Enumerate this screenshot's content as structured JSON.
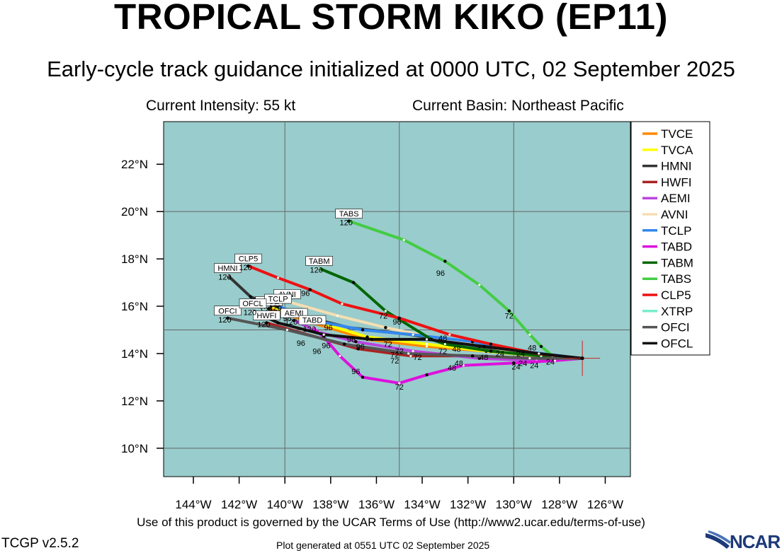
{
  "header": {
    "title": "TROPICAL STORM KIKO (EP11)",
    "subtitle": "Early-cycle track guidance initialized at 0000 UTC, 02 September 2025",
    "intensity": "Current Intensity: 55 kt",
    "basin": "Current Basin: Northeast Pacific"
  },
  "footer": {
    "terms": "Use of this product is governed by the UCAR Terms of Use (http://www2.ucar.edu/terms-of-use)",
    "version": "TCGP v2.5.2",
    "generated": "Plot generated at 0551 UTC   02 September 2025",
    "logo_text": "NCAR"
  },
  "colors": {
    "ocean": "#99cccc",
    "grid": "#666666",
    "storm_marker": "#cc2222"
  },
  "chart_data": {
    "type": "line",
    "xlim": [
      -145.3,
      -124.9
    ],
    "ylim": [
      8.8,
      23.8
    ],
    "x_ticks": [
      -144,
      -142,
      -140,
      -138,
      -136,
      -134,
      -132,
      -130,
      -128,
      -126
    ],
    "x_tick_labels": [
      "144°W",
      "142°W",
      "140°W",
      "138°W",
      "136°W",
      "134°W",
      "132°W",
      "130°W",
      "128°W",
      "126°W"
    ],
    "y_ticks": [
      10,
      12,
      14,
      16,
      18,
      20,
      22
    ],
    "y_tick_labels": [
      "10°N",
      "12°N",
      "14°N",
      "16°N",
      "18°N",
      "20°N",
      "22°N"
    ],
    "grid_x": [
      -140,
      -135,
      -130
    ],
    "grid_y": [
      10,
      15,
      20
    ],
    "storm_position": [
      -127.0,
      13.8
    ],
    "legend_position": "right",
    "series": [
      {
        "name": "TVCE",
        "color": "#ff8800",
        "width": 4,
        "points": [
          [
            -127,
            13.8
          ],
          [
            -128.9,
            13.9
          ],
          [
            -131.2,
            14.1
          ],
          [
            -133.8,
            14.3
          ],
          [
            -136.4,
            14.6
          ],
          [
            -138.8,
            15.3
          ],
          [
            -140.7,
            15.9
          ]
        ],
        "end_label": "TVCE",
        "end_hour": "120"
      },
      {
        "name": "TVCA",
        "color": "#ffff00",
        "width": 4,
        "points": [
          [
            -127,
            13.8
          ],
          [
            -128.9,
            13.9
          ],
          [
            -131.2,
            14.1
          ],
          [
            -133.8,
            14.4
          ],
          [
            -136.4,
            14.7
          ],
          [
            -138.8,
            15.4
          ],
          [
            -140.6,
            16.0
          ]
        ],
        "end_label": "",
        "end_hour": ""
      },
      {
        "name": "HMNI",
        "color": "#333333",
        "width": 4,
        "points": [
          [
            -127,
            13.8
          ],
          [
            -129.0,
            13.95
          ],
          [
            -131.5,
            14.3
          ],
          [
            -134.5,
            14.8
          ],
          [
            -137.2,
            15.1
          ],
          [
            -139.3,
            15.6
          ],
          [
            -141.5,
            16.4
          ],
          [
            -142.5,
            17.3
          ]
        ],
        "end_label": "HMNI",
        "end_hour": "120"
      },
      {
        "name": "HWFI",
        "color": "#aa2222",
        "width": 4,
        "points": [
          [
            -127,
            13.8
          ],
          [
            -129.1,
            13.8
          ],
          [
            -131.8,
            13.9
          ],
          [
            -134.5,
            13.9
          ],
          [
            -136.8,
            14.2
          ],
          [
            -139.0,
            14.8
          ],
          [
            -140.8,
            15.3
          ]
        ],
        "end_label": "HWFI",
        "end_hour": "120"
      },
      {
        "name": "AEMI",
        "color": "#bb44dd",
        "width": 4,
        "points": [
          [
            -127,
            13.8
          ],
          [
            -129.0,
            13.7
          ],
          [
            -131.5,
            13.8
          ],
          [
            -134.4,
            14.1
          ],
          [
            -136.9,
            14.5
          ],
          [
            -138.5,
            14.9
          ],
          [
            -139.6,
            15.4
          ]
        ],
        "end_label": "AEMI",
        "end_hour": "120"
      },
      {
        "name": "AVNI",
        "color": "#f5deb3",
        "width": 4,
        "points": [
          [
            -127,
            13.8
          ],
          [
            -129.0,
            13.9
          ],
          [
            -131.2,
            14.3
          ],
          [
            -133.6,
            14.7
          ],
          [
            -135.6,
            15.1
          ],
          [
            -137.7,
            15.6
          ],
          [
            -139.9,
            16.2
          ]
        ],
        "end_label": "AVNI",
        "end_hour": ""
      },
      {
        "name": "TCLP",
        "color": "#3388ee",
        "width": 4,
        "points": [
          [
            -127,
            13.8
          ],
          [
            -129.2,
            14.05
          ],
          [
            -131.8,
            14.5
          ],
          [
            -134.4,
            14.8
          ],
          [
            -136.6,
            15.0
          ],
          [
            -138.5,
            15.35
          ],
          [
            -140.3,
            16.0
          ]
        ],
        "end_label": "TCLP",
        "end_hour": "120"
      },
      {
        "name": "TABD",
        "color": "#dd11dd",
        "width": 4,
        "points": [
          [
            -127,
            13.8
          ],
          [
            -128.2,
            13.7
          ],
          [
            -130.0,
            13.6
          ],
          [
            -132.2,
            13.5
          ],
          [
            -133.8,
            13.1
          ],
          [
            -135.0,
            12.75
          ],
          [
            -136.6,
            13.0
          ],
          [
            -137.6,
            13.9
          ],
          [
            -138.3,
            14.7
          ],
          [
            -138.8,
            15.1
          ]
        ],
        "end_label": "TABD",
        "end_hour": "120"
      },
      {
        "name": "TABM",
        "color": "#006600",
        "width": 4,
        "points": [
          [
            -127,
            13.8
          ],
          [
            -128.8,
            13.9
          ],
          [
            -131.0,
            14.1
          ],
          [
            -133.0,
            14.4
          ],
          [
            -133.6,
            14.6
          ],
          [
            -135.6,
            15.8
          ],
          [
            -137.0,
            17.0
          ],
          [
            -138.5,
            17.6
          ]
        ],
        "end_label": "TABM",
        "end_hour": "120"
      },
      {
        "name": "TABS",
        "color": "#44cc44",
        "width": 4,
        "points": [
          [
            -127,
            13.8
          ],
          [
            -128.3,
            13.9
          ],
          [
            -128.8,
            14.3
          ],
          [
            -129.3,
            14.8
          ],
          [
            -130.2,
            15.8
          ],
          [
            -131.5,
            16.9
          ],
          [
            -133.0,
            17.9
          ],
          [
            -134.8,
            18.8
          ],
          [
            -137.2,
            19.6
          ]
        ],
        "end_label": "TABS",
        "end_hour": "120"
      },
      {
        "name": "CLP5",
        "color": "#ee1111",
        "width": 4,
        "points": [
          [
            -127,
            13.8
          ],
          [
            -129.0,
            14.0
          ],
          [
            -131.0,
            14.4
          ],
          [
            -132.8,
            14.8
          ],
          [
            -135.0,
            15.5
          ],
          [
            -137.5,
            16.1
          ],
          [
            -138.9,
            16.7
          ],
          [
            -140.3,
            17.2
          ],
          [
            -141.6,
            17.7
          ]
        ],
        "end_label": "CLP5",
        "end_hour": "120"
      },
      {
        "name": "XTRP",
        "color": "#77eecc",
        "width": 4,
        "points": [
          [
            -127,
            13.8
          ],
          [
            -128.0,
            13.8
          ]
        ],
        "end_label": "",
        "end_hour": ""
      },
      {
        "name": "OFCI",
        "color": "#555555",
        "width": 4,
        "points": [
          [
            -127,
            13.8
          ],
          [
            -129.3,
            13.8
          ],
          [
            -131.8,
            13.9
          ],
          [
            -134.6,
            14.0
          ],
          [
            -137.4,
            14.4
          ],
          [
            -139.9,
            15.0
          ],
          [
            -142.5,
            15.5
          ]
        ],
        "end_label": "OFCI",
        "end_hour": "120"
      },
      {
        "name": "OFCL",
        "color": "#111111",
        "width": 4,
        "points": [
          [
            -127,
            13.8
          ],
          [
            -128.9,
            14.0
          ],
          [
            -131.3,
            14.3
          ],
          [
            -133.8,
            14.6
          ],
          [
            -136.2,
            14.6
          ],
          [
            -138.3,
            14.8
          ],
          [
            -140.3,
            15.3
          ],
          [
            -141.4,
            15.8
          ]
        ],
        "end_label": "OFCL",
        "end_hour": "120"
      }
    ],
    "hour_labels": [
      {
        "text": "24",
        "x": -128.4,
        "y": 13.65
      },
      {
        "text": "24",
        "x": -129.6,
        "y": 13.6
      },
      {
        "text": "24",
        "x": -129.9,
        "y": 13.45
      },
      {
        "text": "24",
        "x": -129.1,
        "y": 13.5
      },
      {
        "text": "24",
        "x": -129.7,
        "y": 14.0
      },
      {
        "text": "24",
        "x": -130.6,
        "y": 14.0
      },
      {
        "text": "48",
        "x": -129.2,
        "y": 14.25
      },
      {
        "text": "48",
        "x": -133.1,
        "y": 14.65
      },
      {
        "text": "48",
        "x": -132.5,
        "y": 14.2
      },
      {
        "text": "48",
        "x": -131.3,
        "y": 13.85
      },
      {
        "text": "48",
        "x": -132.4,
        "y": 13.6
      },
      {
        "text": "48",
        "x": -132.7,
        "y": 13.4
      },
      {
        "text": "72",
        "x": -130.2,
        "y": 15.6
      },
      {
        "text": "72",
        "x": -135.7,
        "y": 15.6
      },
      {
        "text": "72",
        "x": -135.5,
        "y": 14.4
      },
      {
        "text": "72",
        "x": -135.2,
        "y": 13.95
      },
      {
        "text": "72",
        "x": -135.0,
        "y": 14.1
      },
      {
        "text": "72",
        "x": -134.2,
        "y": 13.85
      },
      {
        "text": "72",
        "x": -133.1,
        "y": 14.1
      },
      {
        "text": "72",
        "x": -135.2,
        "y": 13.7
      },
      {
        "text": "72",
        "x": -135.0,
        "y": 12.6
      },
      {
        "text": "96",
        "x": -133.2,
        "y": 17.4
      },
      {
        "text": "96",
        "x": -135.1,
        "y": 15.35
      },
      {
        "text": "96",
        "x": -139.1,
        "y": 16.55
      },
      {
        "text": "96",
        "x": -139.9,
        "y": 15.5
      },
      {
        "text": "96",
        "x": -138.1,
        "y": 15.1
      },
      {
        "text": "96",
        "x": -137.1,
        "y": 14.6
      },
      {
        "text": "96",
        "x": -136.7,
        "y": 14.3
      },
      {
        "text": "96",
        "x": -138.2,
        "y": 14.35
      },
      {
        "text": "96",
        "x": -139.3,
        "y": 14.45
      },
      {
        "text": "96",
        "x": -138.6,
        "y": 14.1
      },
      {
        "text": "96",
        "x": -136.9,
        "y": 13.25
      }
    ]
  }
}
